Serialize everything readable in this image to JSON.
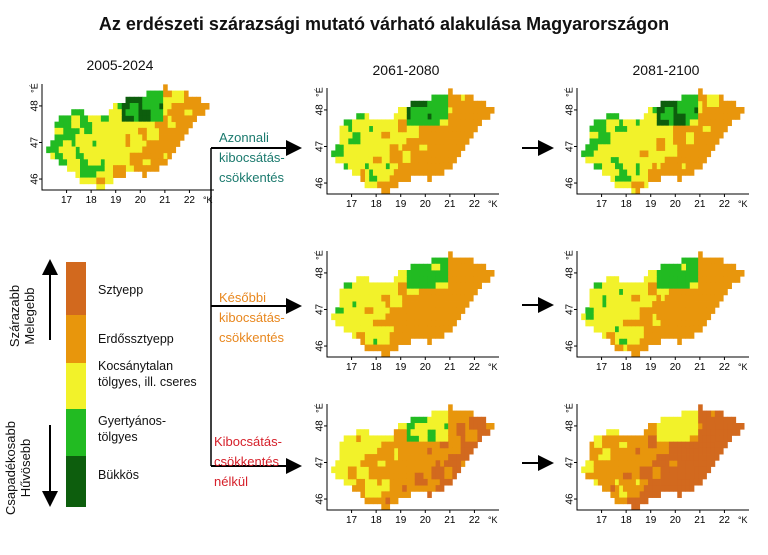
{
  "title": "Az erdészeti szárazsági mutató várható alakulása Magyarországon",
  "periods": [
    "2005-2024",
    "2061-2080",
    "2081-2100"
  ],
  "axes": {
    "x_ticks": [
      "17",
      "18",
      "19",
      "20",
      "21",
      "22"
    ],
    "x_unit": "°K",
    "y_ticks": [
      "46",
      "47",
      "48"
    ],
    "y_unit": "°É"
  },
  "scenarios": [
    {
      "line1": "Azonnali",
      "line2": "kibocsátás-",
      "line3": "csökkentés",
      "color1": "#1b7a6e",
      "color2": "#1b7a6e"
    },
    {
      "line1": "Későbbi",
      "line2": "kibocsátás-",
      "line3": "csökkentés",
      "color1": "#e8871e",
      "color2": "#e8871e"
    },
    {
      "line1": "Kibocsátás-",
      "line2": "csökkentés",
      "line3": "nélkül",
      "color1": "#d6202a",
      "color2": "#d6202a"
    }
  ],
  "legend": {
    "items": [
      {
        "label": "Sztyepp",
        "color": "#d2691e"
      },
      {
        "label": "Erdőssztyepp",
        "color": "#e8960c"
      },
      {
        "label": "Kocsánytalan tölgyes, ill. cseres",
        "color": "#f2f22a"
      },
      {
        "label": "Gyertyános-tölgyes",
        "color": "#22bb22"
      },
      {
        "label": "Bükkös",
        "color": "#0d5e0d"
      }
    ],
    "up_label": [
      "Szárazabb",
      "Melegebb"
    ],
    "down_label": [
      "Csapadékosabb",
      "Hűvösebb"
    ]
  },
  "maps": [
    {
      "period": "2005-2024",
      "scenario": "",
      "shares": {
        "Bükkös": 0.05,
        "Gyertyános-tölgyes": 0.22,
        "Kocsánytalan tölgyes, ill. cseres": 0.45,
        "Erdőssztyepp": 0.28,
        "Sztyepp": 0.0
      }
    },
    {
      "period": "2061-2080",
      "scenario": "Azonnali",
      "shares": {
        "Bükkös": 0.02,
        "Gyertyános-tölgyes": 0.15,
        "Kocsánytalan tölgyes, ill. cseres": 0.35,
        "Erdőssztyepp": 0.48,
        "Sztyepp": 0.0
      }
    },
    {
      "period": "2081-2100",
      "scenario": "Azonnali",
      "shares": {
        "Bükkös": 0.05,
        "Gyertyános-tölgyes": 0.18,
        "Kocsánytalan tölgyes, ill. cseres": 0.42,
        "Erdőssztyepp": 0.35,
        "Sztyepp": 0.0
      }
    },
    {
      "period": "2061-2080",
      "scenario": "Későbbi",
      "shares": {
        "Bükkös": 0.0,
        "Gyertyános-tölgyes": 0.12,
        "Kocsánytalan tölgyes, ill. cseres": 0.33,
        "Erdőssztyepp": 0.55,
        "Sztyepp": 0.0
      }
    },
    {
      "period": "2081-2100",
      "scenario": "Későbbi",
      "shares": {
        "Bükkös": 0.0,
        "Gyertyános-tölgyes": 0.14,
        "Kocsánytalan tölgyes, ill. cseres": 0.34,
        "Erdőssztyepp": 0.52,
        "Sztyepp": 0.0
      }
    },
    {
      "period": "2061-2080",
      "scenario": "Kibocsátás-csökkentés nélkül",
      "shares": {
        "Bükkös": 0.0,
        "Gyertyános-tölgyes": 0.04,
        "Kocsánytalan tölgyes, ill. cseres": 0.3,
        "Erdőssztyepp": 0.5,
        "Sztyepp": 0.16
      }
    },
    {
      "period": "2081-2100",
      "scenario": "Kibocsátás-csökkentés nélkül",
      "shares": {
        "Bükkös": 0.0,
        "Gyertyános-tölgyes": 0.0,
        "Kocsánytalan tölgyes, ill. cseres": 0.18,
        "Erdőssztyepp": 0.35,
        "Sztyepp": 0.47
      }
    }
  ]
}
